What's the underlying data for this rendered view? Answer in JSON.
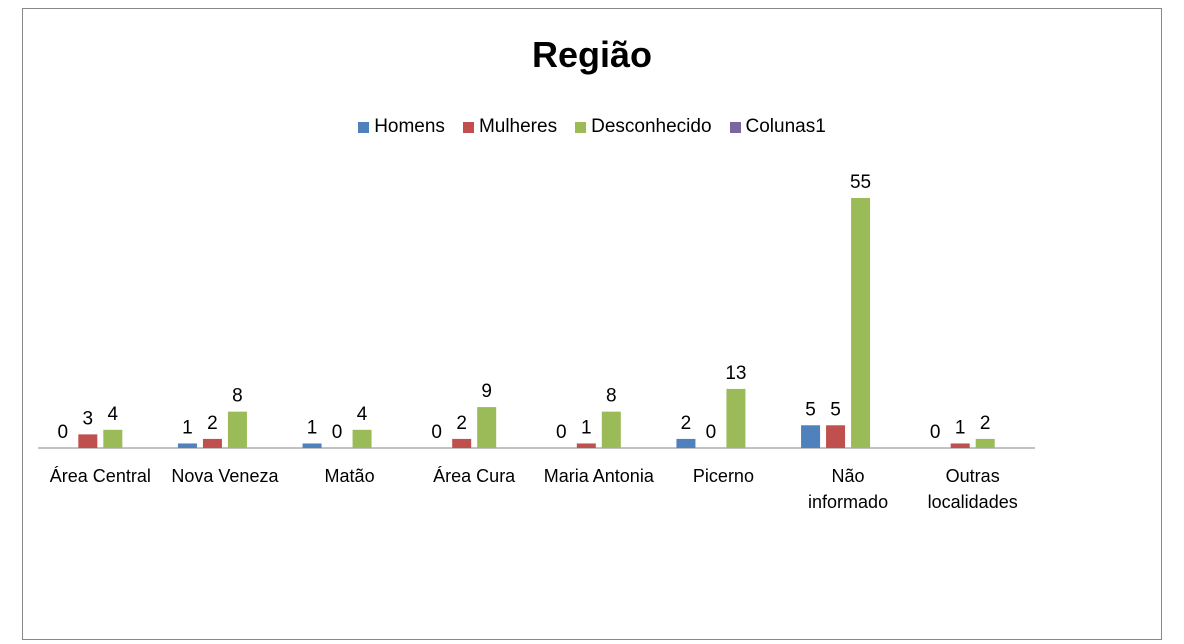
{
  "chart_data": {
    "type": "bar",
    "title": "Região",
    "categories": [
      "Área Central",
      "Nova Veneza",
      "Matão",
      "Área Cura",
      "Maria Antonia",
      "Picerno",
      "Não informado",
      "Outras localidades"
    ],
    "series": [
      {
        "name": "Homens",
        "color": "#4f81bd",
        "values": [
          0,
          1,
          1,
          0,
          0,
          2,
          5,
          0
        ]
      },
      {
        "name": "Mulheres",
        "color": "#c0504d",
        "values": [
          3,
          2,
          0,
          2,
          1,
          0,
          5,
          1
        ]
      },
      {
        "name": "Desconhecido",
        "color": "#9bbb59",
        "values": [
          4,
          8,
          4,
          9,
          8,
          13,
          55,
          2
        ]
      },
      {
        "name": "Colunas1",
        "color": "#8064a2",
        "values": [
          null,
          null,
          null,
          null,
          null,
          null,
          null,
          null
        ]
      }
    ]
  }
}
